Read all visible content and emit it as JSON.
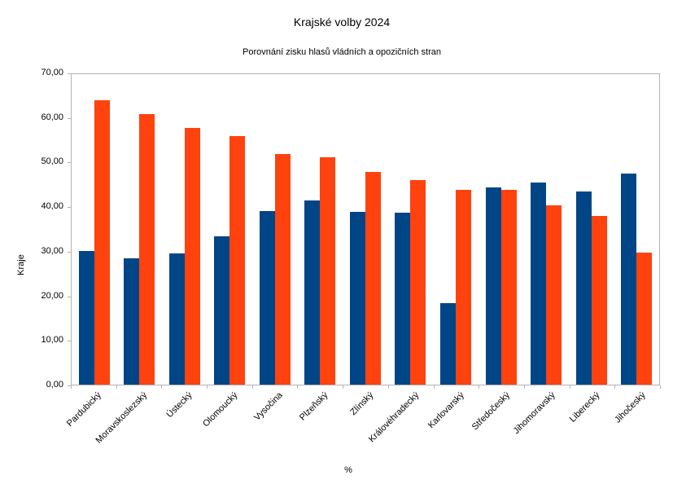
{
  "chart": {
    "title": "Krajské volby 2024",
    "subtitle": "Porovnání zisku hlasů vládních a opozičních stran",
    "y_axis_title": "Kraje",
    "x_axis_title": "%"
  },
  "colors": {
    "series_1": "#004586",
    "series_2": "#FF420E",
    "axis_line": "#b3b3b3",
    "text": "#000000",
    "background": "#ffffff"
  },
  "chart_data": {
    "type": "bar",
    "title": "Krajské volby 2024",
    "subtitle": "Porovnání zisku hlasů vládních a opozičních stran",
    "categories": [
      "Pardubický",
      "Moravskoslezský",
      "Ústecký",
      "Olomoucký",
      "Vysočina",
      "Plzeňský",
      "Zlínský",
      "Královéhradecký",
      "Karlovarský",
      "Středočeský",
      "Jihomoravský",
      "Liberecký",
      "Jihočeský"
    ],
    "series": [
      {
        "name": "series_1",
        "color": "#004586",
        "values": [
          30.2,
          28.4,
          29.5,
          33.5,
          39.2,
          41.5,
          39.0,
          38.8,
          18.4,
          44.5,
          45.6,
          43.5,
          47.5
        ]
      },
      {
        "name": "series_2",
        "color": "#FF420E",
        "values": [
          64.1,
          61.0,
          57.9,
          56.0,
          52.0,
          51.3,
          48.0,
          46.2,
          44.0,
          44.0,
          40.5,
          38.0,
          29.7
        ]
      }
    ],
    "xlabel": "%",
    "ylabel": "Kraje",
    "ylim": [
      0,
      70
    ],
    "y_ticks": [
      0,
      10,
      20,
      30,
      40,
      50,
      60,
      70
    ],
    "y_tick_labels": [
      "0,00",
      "10,00",
      "20,00",
      "30,00",
      "40,00",
      "50,00",
      "60,00",
      "70,00"
    ],
    "x_label_rotation_deg": -45,
    "grid": false,
    "legend_position": "none",
    "plot_border": true
  }
}
